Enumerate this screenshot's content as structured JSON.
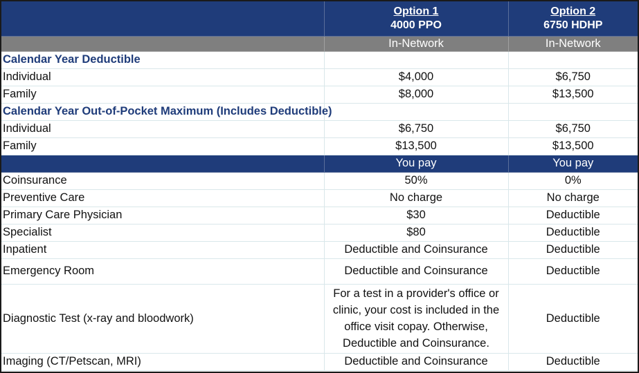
{
  "header": {
    "option1_title": "Option 1",
    "option1_plan": "4000 PPO",
    "option2_title": "Option 2",
    "option2_plan": "6750 HDHP",
    "network1": "In-Network",
    "network2": "In-Network"
  },
  "deductible": {
    "section_title": "Calendar Year Deductible",
    "rows": [
      {
        "label": "Individual",
        "opt1": "$4,000",
        "opt2": "$6,750"
      },
      {
        "label": "Family",
        "opt1": "$8,000",
        "opt2": "$13,500"
      }
    ]
  },
  "oop": {
    "section_title": "Calendar Year Out-of-Pocket Maximum (Includes Deductible)",
    "rows": [
      {
        "label": "Individual",
        "opt1": "$6,750",
        "opt2": "$6,750"
      },
      {
        "label": "Family",
        "opt1": "$13,500",
        "opt2": "$13,500"
      }
    ]
  },
  "you_pay": {
    "opt1": "You pay",
    "opt2": "You pay"
  },
  "services": [
    {
      "label": "Coinsurance",
      "opt1": "50%",
      "opt2": "0%"
    },
    {
      "label": "Preventive Care",
      "opt1": "No charge",
      "opt2": "No charge"
    },
    {
      "label": "Primary Care Physician",
      "opt1": "$30",
      "opt2": "Deductible"
    },
    {
      "label": "Specialist",
      "opt1": "$80",
      "opt2": "Deductible"
    },
    {
      "label": "Inpatient",
      "opt1": "Deductible and Coinsurance",
      "opt2": "Deductible"
    },
    {
      "label": "Emergency Room",
      "opt1": "Deductible and Coinsurance",
      "opt2": "Deductible"
    },
    {
      "label": "Diagnostic Test (x-ray and bloodwork)",
      "opt1": "For a test in a provider's office or clinic, your cost is included in the office visit copay. Otherwise, Deductible and Coinsurance.",
      "opt2": "Deductible"
    },
    {
      "label": "Imaging (CT/Petscan, MRI)",
      "opt1": "Deductible and Coinsurance",
      "opt2": "Deductible"
    }
  ],
  "colors": {
    "header_blue": "#1f3c7a",
    "grey_band": "#7f7f7f",
    "grid": "#d9e7ea"
  }
}
